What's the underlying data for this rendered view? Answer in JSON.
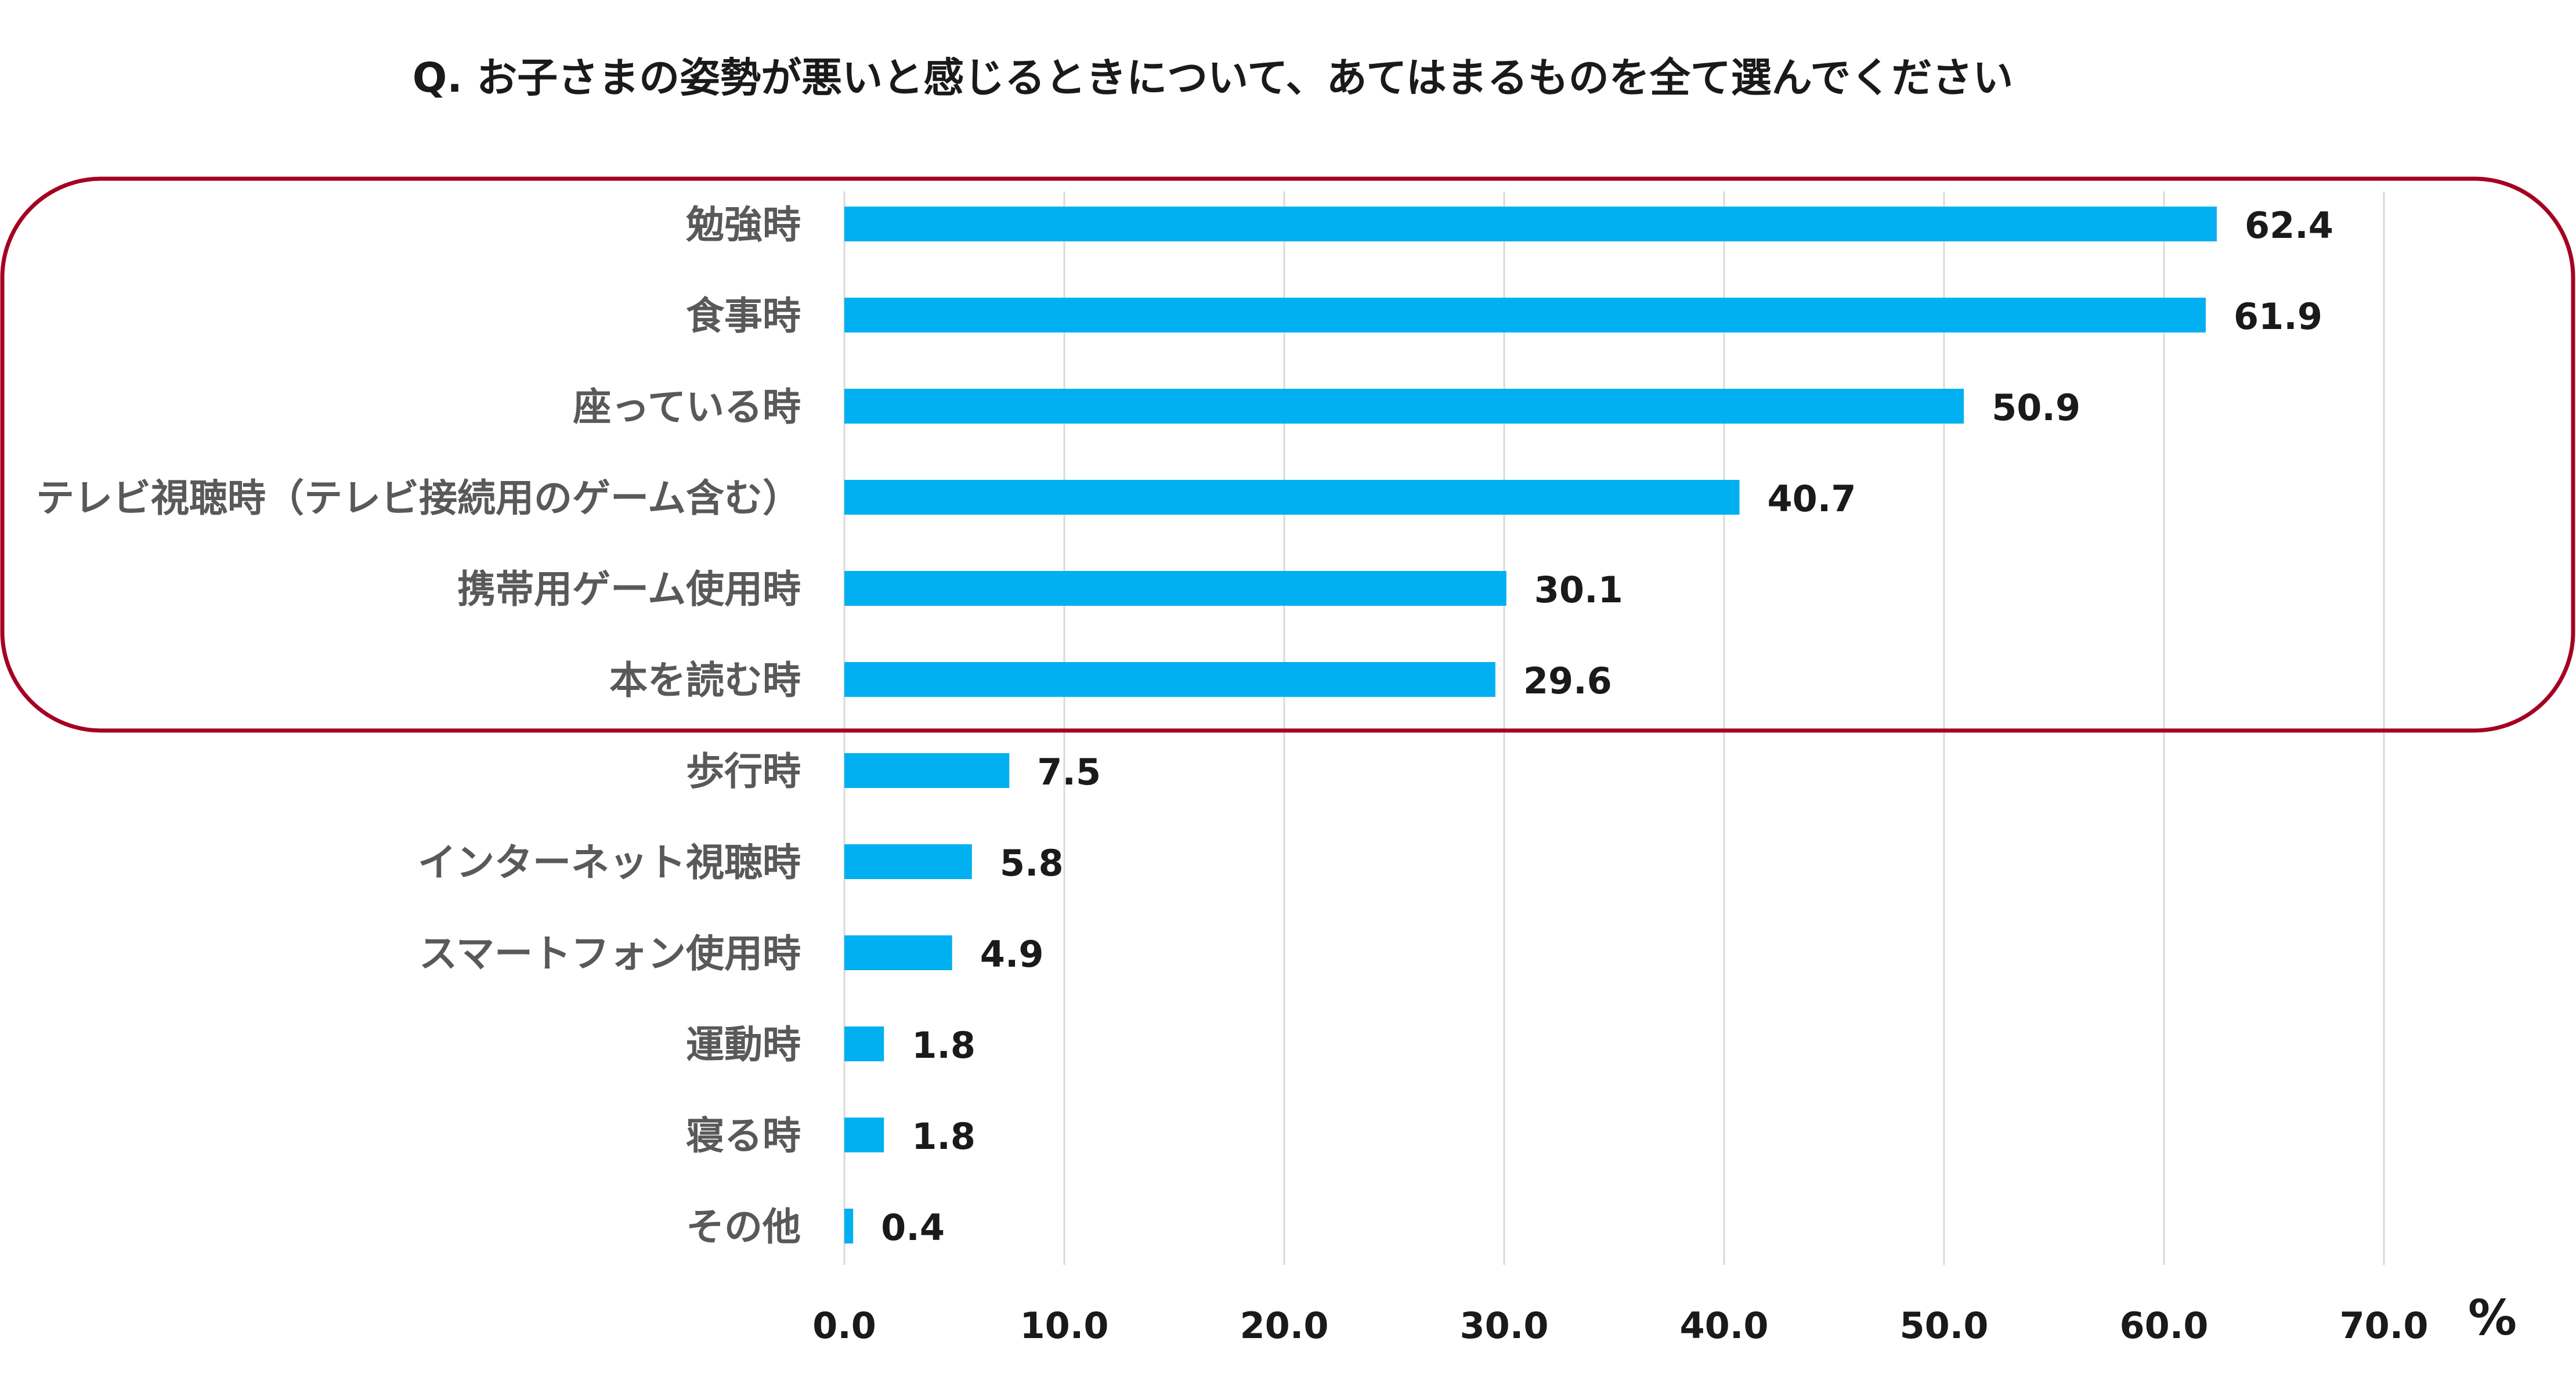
{
  "chart_data": {
    "type": "bar",
    "orientation": "horizontal",
    "title": "Q. お子さまの姿勢が悪いと感じるときについて、あてはまるものを全て選んでください",
    "categories": [
      "勉強時",
      "食事時",
      "座っている時",
      "テレビ視聴時（テレビ接続用のゲーム含む）",
      "携帯用ゲーム使用時",
      "本を読む時",
      "歩行時",
      "インターネット視聴時",
      "スマートフォン使用時",
      "運動時",
      "寝る時",
      "その他"
    ],
    "values": [
      62.4,
      61.9,
      50.9,
      40.7,
      30.1,
      29.6,
      7.5,
      5.8,
      4.9,
      1.8,
      1.8,
      0.4
    ],
    "value_labels": [
      "62.4",
      "61.9",
      "50.9",
      "40.7",
      "30.1",
      "29.6",
      "7.5",
      "5.8",
      "4.9",
      "1.8",
      "1.8",
      "0.4"
    ],
    "xlim": [
      0,
      70
    ],
    "x_ticks": [
      0,
      10,
      20,
      30,
      40,
      50,
      60,
      70
    ],
    "x_tick_labels": [
      "0.0",
      "10.0",
      "20.0",
      "30.0",
      "40.0",
      "50.0",
      "60.0",
      "70.0"
    ],
    "unit_label": "%",
    "grid": "vertical",
    "highlight_top_n": 6,
    "colors": {
      "bar": "#00B0F0",
      "highlight_border": "#A50021",
      "grid": "#D9D9D9",
      "category_text": "#595959",
      "value_text": "#1a1a1a"
    }
  }
}
